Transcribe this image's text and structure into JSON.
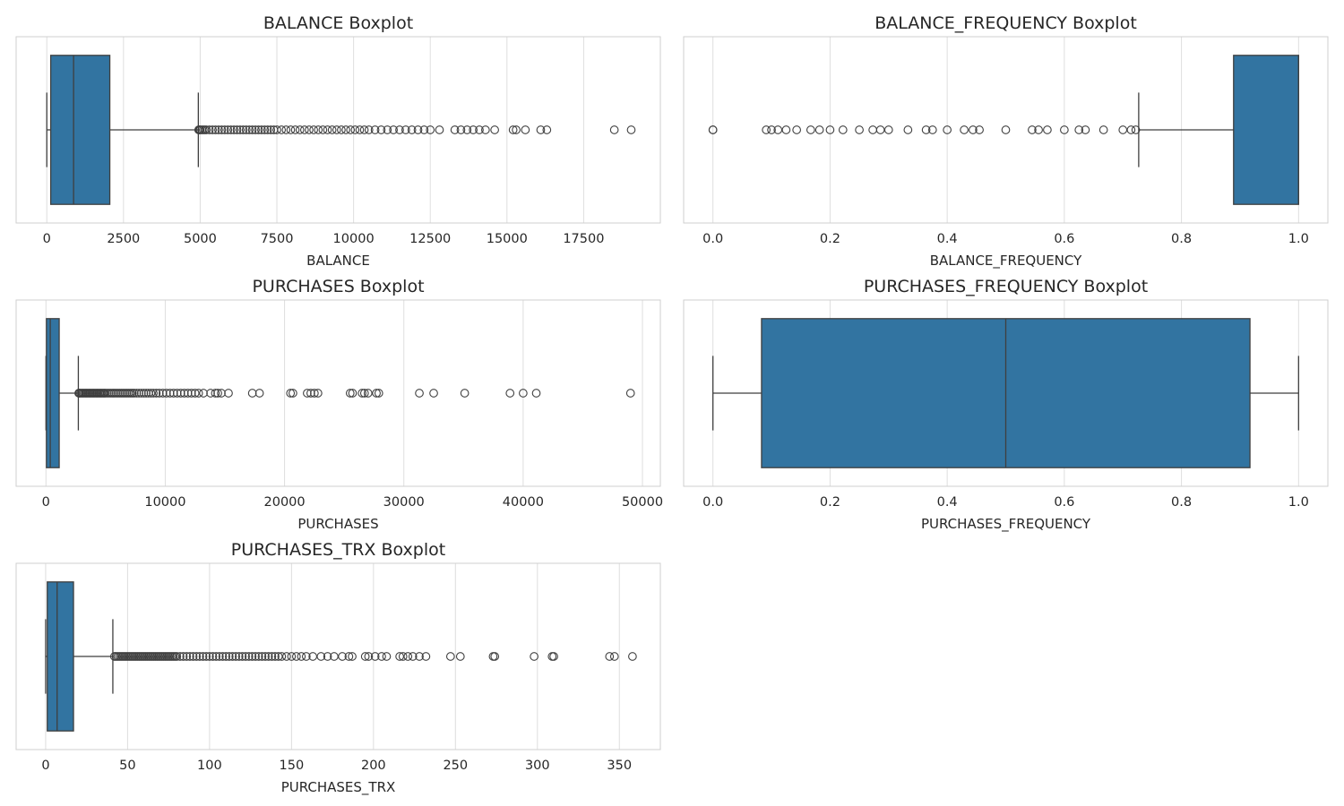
{
  "colors": {
    "box": "#3274a1",
    "line": "#3f3f3f",
    "grid": "#dedede",
    "background": "#ffffff"
  },
  "chart_data": [
    {
      "type": "box",
      "title": "BALANCE Boxplot",
      "xlabel": "BALANCE",
      "ylabel": "",
      "xlim": [
        -1000,
        20000
      ],
      "xticks": [
        0,
        2500,
        5000,
        7500,
        10000,
        12500,
        15000,
        17500
      ],
      "xtick_labels": [
        "0",
        "2500",
        "5000",
        "7500",
        "10000",
        "12500",
        "15000",
        "17500"
      ],
      "grid": true,
      "whisker_low": 0,
      "q1": 128,
      "median": 873,
      "q3": 2054,
      "whisker_high": 4939,
      "outliers": [
        4950,
        4975,
        5000,
        5050,
        5100,
        5150,
        5200,
        5300,
        5400,
        5500,
        5600,
        5700,
        5800,
        5900,
        6000,
        6100,
        6200,
        6300,
        6400,
        6500,
        6600,
        6700,
        6800,
        6900,
        7000,
        7100,
        7200,
        7300,
        7400,
        7500,
        7650,
        7800,
        7950,
        8100,
        8250,
        8400,
        8550,
        8700,
        8850,
        9000,
        9150,
        9300,
        9450,
        9600,
        9750,
        9900,
        10050,
        10200,
        10350,
        10500,
        10700,
        10900,
        11100,
        11300,
        11500,
        11700,
        11900,
        12100,
        12300,
        12500,
        12800,
        13300,
        13500,
        13700,
        13900,
        14100,
        14300,
        14600,
        15200,
        15300,
        15600,
        16100,
        16300,
        18500,
        19050
      ]
    },
    {
      "type": "box",
      "title": "BALANCE_FREQUENCY Boxplot",
      "xlabel": "BALANCE_FREQUENCY",
      "ylabel": "",
      "xlim": [
        -0.05,
        1.05
      ],
      "xticks": [
        0.0,
        0.2,
        0.4,
        0.6,
        0.8,
        1.0
      ],
      "xtick_labels": [
        "0.0",
        "0.2",
        "0.4",
        "0.6",
        "0.8",
        "1.0"
      ],
      "grid": true,
      "whisker_low": 0.727,
      "q1": 0.889,
      "median": 1.0,
      "q3": 1.0,
      "whisker_high": 1.0,
      "outliers": [
        0.0,
        0.0,
        0.091,
        0.1,
        0.111,
        0.125,
        0.143,
        0.167,
        0.182,
        0.2,
        0.222,
        0.25,
        0.273,
        0.286,
        0.3,
        0.333,
        0.364,
        0.375,
        0.4,
        0.429,
        0.444,
        0.455,
        0.5,
        0.545,
        0.556,
        0.571,
        0.6,
        0.625,
        0.636,
        0.667,
        0.7,
        0.714,
        0.722
      ]
    },
    {
      "type": "box",
      "title": "PURCHASES Boxplot",
      "xlabel": "PURCHASES",
      "ylabel": "",
      "xlim": [
        -2500,
        51500
      ],
      "xticks": [
        0,
        10000,
        20000,
        30000,
        40000,
        50000
      ],
      "xtick_labels": [
        "0",
        "10000",
        "20000",
        "30000",
        "40000",
        "50000"
      ],
      "grid": true,
      "whisker_low": 0,
      "q1": 40,
      "median": 361,
      "q3": 1110,
      "whisker_high": 2715,
      "outliers": [
        2750,
        2800,
        2900,
        3000,
        3100,
        3200,
        3300,
        3400,
        3500,
        3600,
        3700,
        3800,
        3900,
        4000,
        4100,
        4200,
        4300,
        4400,
        4500,
        4600,
        4700,
        4800,
        4900,
        5000,
        5150,
        5300,
        5450,
        5600,
        5750,
        5900,
        6050,
        6200,
        6350,
        6500,
        6650,
        6800,
        6950,
        7100,
        7250,
        7400,
        7600,
        7800,
        8000,
        8200,
        8400,
        8600,
        8800,
        9000,
        9250,
        9500,
        9800,
        10100,
        10400,
        10700,
        11000,
        11300,
        11600,
        11900,
        12200,
        12500,
        12800,
        13200,
        13800,
        14200,
        14400,
        14700,
        15300,
        17300,
        17900,
        20500,
        20700,
        21900,
        22200,
        22500,
        22800,
        25500,
        25700,
        26500,
        26700,
        27000,
        27700,
        27900,
        31300,
        32500,
        35100,
        38900,
        40000,
        41100,
        49000
      ]
    },
    {
      "type": "box",
      "title": "PURCHASES_FREQUENCY Boxplot",
      "xlabel": "PURCHASES_FREQUENCY",
      "ylabel": "",
      "xlim": [
        -0.05,
        1.05
      ],
      "xticks": [
        0.0,
        0.2,
        0.4,
        0.6,
        0.8,
        1.0
      ],
      "xtick_labels": [
        "0.0",
        "0.2",
        "0.4",
        "0.6",
        "0.8",
        "1.0"
      ],
      "grid": true,
      "whisker_low": 0.0,
      "q1": 0.083,
      "median": 0.5,
      "q3": 0.917,
      "whisker_high": 1.0,
      "outliers": []
    },
    {
      "type": "box",
      "title": "PURCHASES_TRX Boxplot",
      "xlabel": "PURCHASES_TRX",
      "ylabel": "",
      "xlim": [
        -18,
        375
      ],
      "xticks": [
        0,
        50,
        100,
        150,
        200,
        250,
        300,
        350
      ],
      "xtick_labels": [
        "0",
        "50",
        "100",
        "150",
        "200",
        "250",
        "300",
        "350"
      ],
      "grid": true,
      "whisker_low": 0,
      "q1": 1,
      "median": 7,
      "q3": 17,
      "whisker_high": 41,
      "outliers": [
        42,
        43,
        44,
        45,
        46,
        47,
        48,
        49,
        50,
        51,
        52,
        53,
        54,
        55,
        56,
        57,
        58,
        59,
        60,
        61,
        62,
        63,
        64,
        65,
        66,
        67,
        68,
        69,
        70,
        71,
        72,
        73,
        74,
        75,
        76,
        77,
        78,
        79,
        80,
        82,
        84,
        86,
        88,
        90,
        92,
        94,
        96,
        98,
        100,
        102,
        104,
        106,
        108,
        110,
        112,
        114,
        116,
        118,
        120,
        122,
        124,
        126,
        128,
        130,
        132,
        134,
        136,
        138,
        140,
        142,
        144,
        147,
        150,
        153,
        156,
        159,
        163,
        168,
        172,
        176,
        181,
        185,
        187,
        195,
        197,
        201,
        205,
        208,
        216,
        218,
        221,
        224,
        228,
        232,
        247,
        253,
        273,
        274,
        298,
        309,
        310,
        344,
        347,
        358
      ]
    }
  ]
}
